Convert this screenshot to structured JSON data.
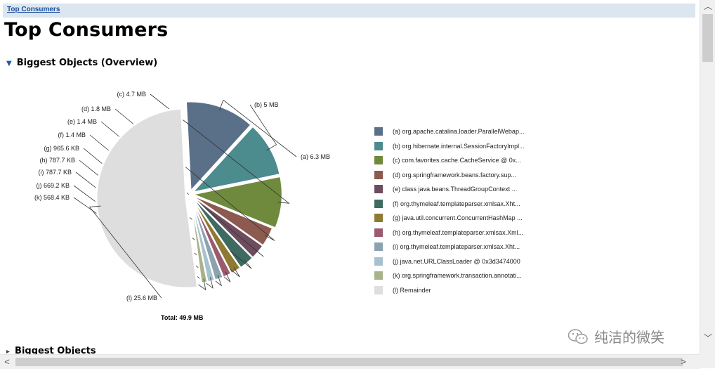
{
  "breadcrumb": "Top Consumers",
  "page_title": "Top Consumers",
  "section": {
    "caret": "▼",
    "title": "Biggest Objects (Overview)"
  },
  "section2": {
    "caret": "▸",
    "title": "Biggest Objects"
  },
  "chart_data": {
    "type": "pie",
    "unit": "MB",
    "total_label": "Total: 49.9 MB",
    "slices": [
      {
        "key": "(a)",
        "value": 6.3,
        "value_label": "6.3 MB",
        "legend": "(a)  org.apache.catalina.loader.ParallelWebap...",
        "color": "#5a7088"
      },
      {
        "key": "(b)",
        "value": 5.0,
        "value_label": "5 MB",
        "legend": "(b)  org.hibernate.internal.SessionFactoryImpl...",
        "color": "#4c8b8e"
      },
      {
        "key": "(c)",
        "value": 4.7,
        "value_label": "4.7 MB",
        "legend": "(c)  com.favorites.cache.CacheService @ 0x...",
        "color": "#6f8a3d"
      },
      {
        "key": "(d)",
        "value": 1.8,
        "value_label": "1.8 MB",
        "legend": "(d)  org.springframework.beans.factory.sup...",
        "color": "#8c5a4e"
      },
      {
        "key": "(e)",
        "value": 1.4,
        "value_label": "1.4 MB",
        "legend": "(e)  class java.beans.ThreadGroupContext ...",
        "color": "#6d4c5e"
      },
      {
        "key": "(f)",
        "value": 1.4,
        "value_label": "1.4 MB",
        "legend": "(f)  org.thymeleaf.templateparser.xmlsax.Xht...",
        "color": "#3e6a62"
      },
      {
        "key": "(g)",
        "value": 0.9655,
        "value_label": "965.6 KB",
        "legend": "(g)  java.util.concurrent.ConcurrentHashMap ...",
        "color": "#8e7a32"
      },
      {
        "key": "(h)",
        "value": 0.7877,
        "value_label": "787.7 KB",
        "legend": "(h)  org.thymeleaf.templateparser.xmlsax.Xml...",
        "color": "#9c5a6e"
      },
      {
        "key": "(i)",
        "value": 0.7877,
        "value_label": "787.7 KB",
        "legend": "(i)  org.thymeleaf.templateparser.xmlsax.Xht...",
        "color": "#8da2b0"
      },
      {
        "key": "(j)",
        "value": 0.6692,
        "value_label": "669.2 KB",
        "legend": "(j)  java.net.URLClassLoader @ 0x3d3474000",
        "color": "#a7c1cf"
      },
      {
        "key": "(k)",
        "value": 0.5684,
        "value_label": "568.4 KB",
        "legend": "(k)  org.springframework.transaction.annotati...",
        "color": "#a8b38a"
      },
      {
        "key": "(l)",
        "value": 25.6,
        "value_label": "25.6 MB",
        "legend": "(l)  Remainder",
        "color": "#dedede"
      }
    ]
  },
  "watermark": "纯洁的微笑",
  "scrollbar": {
    "up": "︿",
    "down": "﹀",
    "left": "<",
    "right": ">"
  }
}
